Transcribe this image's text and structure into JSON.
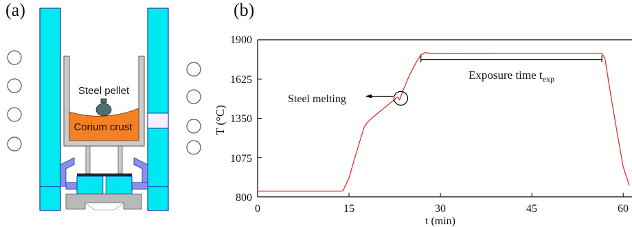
{
  "panels": {
    "a": "(a)",
    "b": "(b)"
  },
  "schematic": {
    "pellet_label": "Steel pellet",
    "crust_label": "Corium crust",
    "colors": {
      "wall": "#00e8f0",
      "crust": "#f58023",
      "holder": "#cccccc",
      "support": "#8a8fe8",
      "pellet": "#4f7070"
    }
  },
  "chart_data": {
    "type": "line",
    "xlabel": "t (min)",
    "ylabel": "T (°C)",
    "xlim": [
      0,
      61
    ],
    "ylim": [
      800,
      1900
    ],
    "xticks": [
      0,
      15,
      30,
      45,
      60
    ],
    "xtick_labels": [
      "0",
      "15",
      "30",
      "45",
      "60"
    ],
    "yticks": [
      800,
      1075,
      1350,
      1625,
      1900
    ],
    "ytick_labels": [
      "800",
      "1075",
      "1350",
      "1625",
      "1900"
    ],
    "series": [
      {
        "color": "#e03030",
        "x": [
          0,
          13.6,
          14.0,
          15.0,
          16.0,
          17.5,
          18.0,
          19.0,
          20.0,
          21.0,
          22.0,
          23.0,
          23.3,
          24.0,
          25.0,
          26.0,
          26.8,
          27.5,
          28.5,
          30,
          35,
          40,
          45,
          50,
          55,
          56.5,
          57.0,
          58,
          59,
          60,
          61
        ],
        "y": [
          840,
          840,
          842,
          930,
          1080,
          1290,
          1320,
          1360,
          1395,
          1430,
          1465,
          1500,
          1480,
          1560,
          1660,
          1740,
          1795,
          1810,
          1805,
          1805,
          1805,
          1806,
          1806,
          1806,
          1806,
          1806,
          1770,
          1500,
          1250,
          1010,
          880
        ]
      }
    ],
    "annotations": {
      "melting_label": "Steel melting",
      "melting_point": {
        "x": 23.5,
        "y": 1490
      },
      "exposure_prefix": "Exposure time t",
      "exposure_sub": "exp",
      "exposure_range": [
        26.8,
        56.5
      ]
    }
  }
}
